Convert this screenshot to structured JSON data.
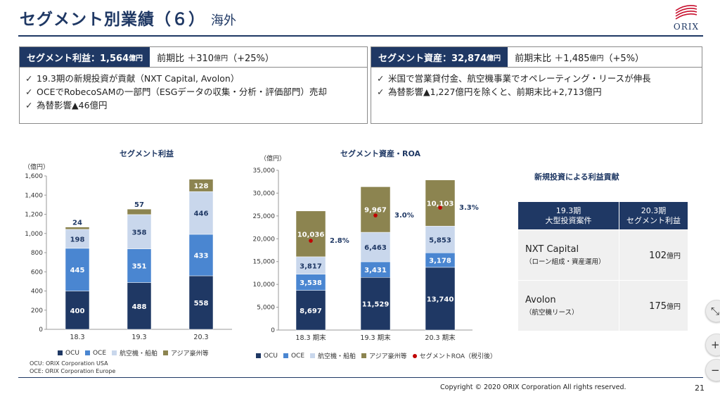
{
  "header": {
    "title": "セグメント別業績（６）",
    "subtitle": "海外",
    "logo_text": "ORIX"
  },
  "profit_box": {
    "tag_label": "セグメント利益：1,564",
    "tag_unit": "億円",
    "compare_prefix": "前期比 ＋310",
    "compare_unit": "億円",
    "compare_suffix": "（+25%）",
    "bullets": [
      "19.3期の新規投資が貢献（NXT Capital, Avolon）",
      "OCEでRobecoSAMの一部門（ESGデータの収集・分析・評価部門）売却",
      "為替影響▲46億円"
    ]
  },
  "assets_box": {
    "tag_label": "セグメント資産：32,874",
    "tag_unit": "億円",
    "compare_prefix": "前期末比 ＋1,485",
    "compare_unit": "億円",
    "compare_suffix": "（+5%）",
    "bullets": [
      "米国で営業貸付金、航空機事業でオペレーティング・リースが伸長",
      "為替影響▲1,227億円を除くと、前期末比+2,713億円"
    ]
  },
  "check_mark": "✓",
  "chart_data": [
    {
      "type": "bar",
      "stacked": true,
      "title": "セグメント利益",
      "ylabel": "（億円）",
      "ylim": [
        0,
        1600
      ],
      "yticks": [
        "0",
        "200",
        "400",
        "600",
        "800",
        "1,000",
        "1,200",
        "1,400",
        "1,600"
      ],
      "categories": [
        "18.3",
        "19.3",
        "20.3"
      ],
      "series": [
        {
          "name": "OCU",
          "color": "#1f3864",
          "values": [
            400,
            488,
            558
          ],
          "labels": [
            "400",
            "488",
            "558"
          ]
        },
        {
          "name": "OCE",
          "color": "#4a86d1",
          "values": [
            445,
            351,
            433
          ],
          "labels": [
            "445",
            "351",
            "433"
          ]
        },
        {
          "name": "航空機・船舶",
          "color": "#c9d7ec",
          "values": [
            198,
            358,
            446
          ],
          "labels": [
            "198",
            "358",
            "446"
          ]
        },
        {
          "name": "アジア豪州等",
          "color": "#8c8450",
          "values": [
            24,
            57,
            128
          ],
          "labels": [
            "24",
            "57",
            "128"
          ]
        }
      ],
      "grid": false,
      "legend": "bottom"
    },
    {
      "type": "bar",
      "stacked": true,
      "title": "セグメント資産・ROA",
      "ylabel": "（億円）",
      "ylim": [
        0,
        35000
      ],
      "yticks": [
        "0",
        "5,000",
        "10,000",
        "15,000",
        "20,000",
        "25,000",
        "30,000",
        "35,000"
      ],
      "categories": [
        "18.3 期末",
        "19.3 期末",
        "20.3 期末"
      ],
      "series": [
        {
          "name": "OCU",
          "color": "#1f3864",
          "values": [
            8697,
            11529,
            13740
          ],
          "labels": [
            "8,697",
            "11,529",
            "13,740"
          ]
        },
        {
          "name": "OCE",
          "color": "#4a86d1",
          "values": [
            3538,
            3431,
            3178
          ],
          "labels": [
            "3,538",
            "3,431",
            "3,178"
          ]
        },
        {
          "name": "航空機・船舶",
          "color": "#c9d7ec",
          "values": [
            3817,
            6463,
            5853
          ],
          "labels": [
            "3,817",
            "6,463",
            "5,853"
          ]
        },
        {
          "name": "アジア豪州等",
          "color": "#8c8450",
          "values": [
            10036,
            9967,
            10103
          ],
          "labels": [
            "10,036",
            "9,967",
            "10,103"
          ]
        }
      ],
      "roa": {
        "name": "セグメントROA（税引後）",
        "color": "#c00000",
        "values": [
          2.8,
          3.0,
          3.3
        ],
        "labels": [
          "2.8%",
          "3.0%",
          "3.3%"
        ],
        "unit": "%"
      },
      "grid": false,
      "legend": "bottom"
    }
  ],
  "notes": {
    "ocu": "OCU: ORIX Corporation USA",
    "oce": "OCE: ORIX Corporation Europe"
  },
  "contribution": {
    "title": "新規投資による利益貢献",
    "col1_line1": "19.3期",
    "col1_line2": "大型投資案件",
    "col2_line1": "20.3期",
    "col2_line2": "セグメント利益",
    "rows": [
      {
        "name": "NXT Capital",
        "detail": "（ローン組成・資産運用）",
        "value": "102",
        "unit": "億円"
      },
      {
        "name": "Avolon",
        "detail": "（航空機リース）",
        "value": "175",
        "unit": "億円"
      }
    ]
  },
  "controls": {
    "fit_icon": "⤡",
    "zoom_in": "+",
    "zoom_out": "−"
  },
  "footer": {
    "copyright": "Copyright © 2020 ORIX Corporation All rights reserved.",
    "page_number": "21"
  }
}
